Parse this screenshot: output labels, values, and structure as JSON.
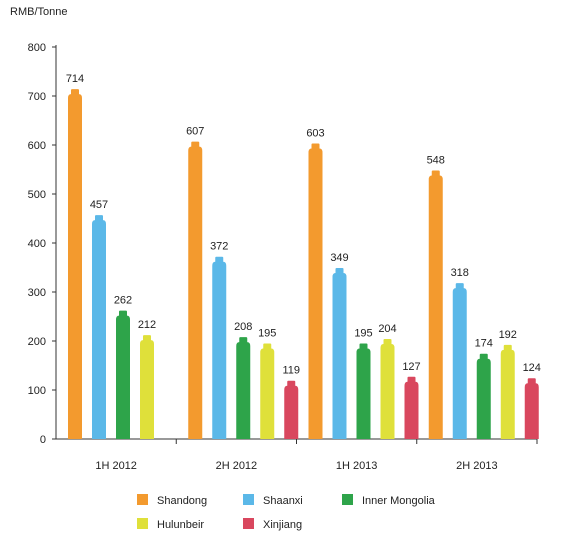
{
  "chart_data": {
    "type": "bar",
    "ylabel": "RMB/Tonne",
    "ylim": [
      0,
      800
    ],
    "yticks": [
      0,
      100,
      200,
      300,
      400,
      500,
      600,
      700,
      800
    ],
    "grid": false,
    "legend_position": "bottom",
    "categories": [
      "1H 2012",
      "2H 2012",
      "1H 2013",
      "2H 2013"
    ],
    "series": [
      {
        "name": "Shandong",
        "color": "#f39a2e",
        "values": [
          714,
          607,
          603,
          548
        ]
      },
      {
        "name": "Shaanxi",
        "color": "#5bb8e8",
        "values": [
          457,
          372,
          349,
          318
        ]
      },
      {
        "name": "Inner Mongolia",
        "color": "#2ea44a",
        "values": [
          262,
          208,
          195,
          174
        ]
      },
      {
        "name": "Hulunbeir",
        "color": "#dfe03a",
        "values": [
          212,
          195,
          204,
          192
        ]
      },
      {
        "name": "Xinjiang",
        "color": "#d9475e",
        "values": [
          null,
          119,
          127,
          124
        ]
      }
    ]
  }
}
